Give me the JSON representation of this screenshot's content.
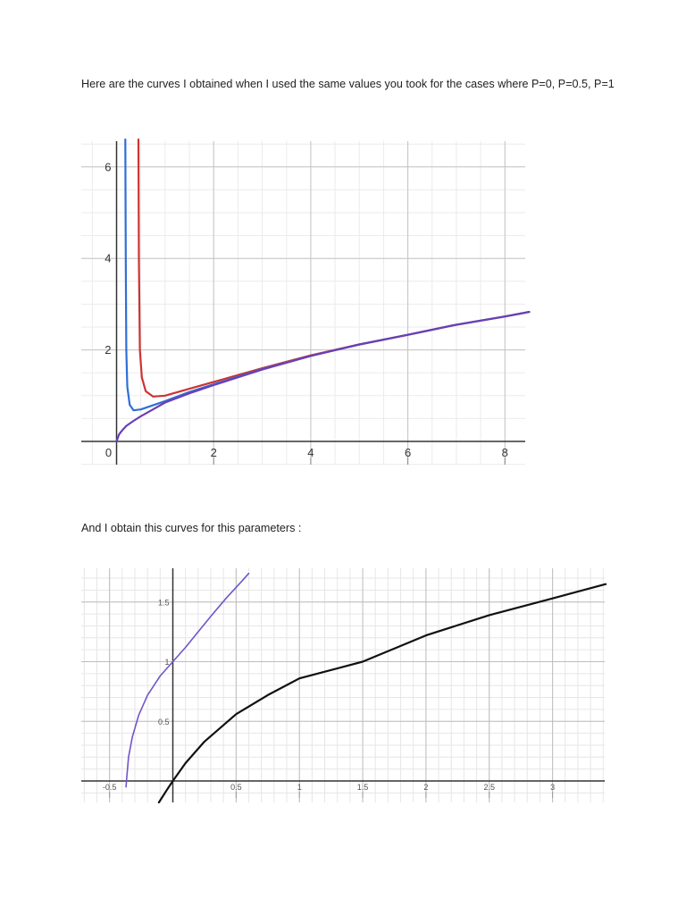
{
  "document": {
    "paragraph_1": "Here are the curves I obtained when I used the same values you took for the cases where P=0, P=0.5, P=1",
    "paragraph_2": "And I obtain this curves for this parameters :"
  },
  "chart_data": [
    {
      "type": "line",
      "title": "",
      "xlabel": "",
      "ylabel": "",
      "xlim": [
        -0.7,
        8.5
      ],
      "ylim": [
        -0.6,
        6.6
      ],
      "grid": true,
      "x_ticks": [
        "0",
        "2",
        "4",
        "6",
        "8"
      ],
      "y_ticks": [
        "2",
        "4",
        "6"
      ],
      "series": [
        {
          "color": "#cc3333",
          "points": [
            [
              0.45,
              6.6
            ],
            [
              0.46,
              4.0
            ],
            [
              0.48,
              2.0
            ],
            [
              0.52,
              1.4
            ],
            [
              0.6,
              1.1
            ],
            [
              0.75,
              0.98
            ],
            [
              1.0,
              1.0
            ],
            [
              1.5,
              1.15
            ],
            [
              2.0,
              1.3
            ],
            [
              3.0,
              1.6
            ],
            [
              4.0,
              1.88
            ],
            [
              5.0,
              2.12
            ],
            [
              6.0,
              2.33
            ],
            [
              7.0,
              2.55
            ],
            [
              8.0,
              2.73
            ],
            [
              8.5,
              2.83
            ]
          ]
        },
        {
          "color": "#2f6fd6",
          "points": [
            [
              0.18,
              6.6
            ],
            [
              0.19,
              4.0
            ],
            [
              0.2,
              2.0
            ],
            [
              0.22,
              1.2
            ],
            [
              0.27,
              0.8
            ],
            [
              0.35,
              0.68
            ],
            [
              0.5,
              0.7
            ],
            [
              1.0,
              0.88
            ],
            [
              1.5,
              1.08
            ],
            [
              2.0,
              1.25
            ],
            [
              3.0,
              1.58
            ],
            [
              4.0,
              1.87
            ],
            [
              5.0,
              2.12
            ],
            [
              6.0,
              2.33
            ],
            [
              7.0,
              2.55
            ],
            [
              8.0,
              2.73
            ],
            [
              8.5,
              2.83
            ]
          ]
        },
        {
          "color": "#6a3fb5",
          "points": [
            [
              0.0,
              0.0
            ],
            [
              0.05,
              0.15
            ],
            [
              0.1,
              0.22
            ],
            [
              0.2,
              0.34
            ],
            [
              0.35,
              0.45
            ],
            [
              0.5,
              0.55
            ],
            [
              0.75,
              0.7
            ],
            [
              1.0,
              0.85
            ],
            [
              1.5,
              1.05
            ],
            [
              2.0,
              1.23
            ],
            [
              3.0,
              1.57
            ],
            [
              4.0,
              1.87
            ],
            [
              5.0,
              2.12
            ],
            [
              6.0,
              2.33
            ],
            [
              7.0,
              2.55
            ],
            [
              8.0,
              2.73
            ],
            [
              8.5,
              2.83
            ]
          ]
        }
      ]
    },
    {
      "type": "line",
      "title": "",
      "xlabel": "",
      "ylabel": "",
      "xlim": [
        -0.7,
        3.42
      ],
      "ylim": [
        -0.18,
        1.78
      ],
      "grid": true,
      "x_ticks": [
        "-0.5",
        "0.5",
        "1",
        "1.5",
        "2",
        "2.5",
        "3"
      ],
      "y_ticks": [
        "0.5",
        "1",
        "1.5"
      ],
      "series": [
        {
          "color": "#7155c9",
          "points": [
            [
              -0.37,
              -0.05
            ],
            [
              -0.365,
              0.02
            ],
            [
              -0.35,
              0.2
            ],
            [
              -0.32,
              0.37
            ],
            [
              -0.27,
              0.55
            ],
            [
              -0.2,
              0.72
            ],
            [
              -0.1,
              0.88
            ],
            [
              0.0,
              1.0
            ],
            [
              0.1,
              1.12
            ],
            [
              0.2,
              1.25
            ],
            [
              0.3,
              1.38
            ],
            [
              0.42,
              1.53
            ],
            [
              0.55,
              1.68
            ],
            [
              0.6,
              1.74
            ]
          ]
        },
        {
          "color": "#111111",
          "points": [
            [
              -0.11,
              -0.18
            ],
            [
              -0.05,
              -0.08
            ],
            [
              0.0,
              0.0
            ],
            [
              0.1,
              0.15
            ],
            [
              0.25,
              0.33
            ],
            [
              0.5,
              0.56
            ],
            [
              0.75,
              0.72
            ],
            [
              1.0,
              0.86
            ],
            [
              1.5,
              1.0
            ],
            [
              2.0,
              1.22
            ],
            [
              2.5,
              1.39
            ],
            [
              3.0,
              1.53
            ],
            [
              3.42,
              1.65
            ]
          ]
        }
      ]
    }
  ]
}
